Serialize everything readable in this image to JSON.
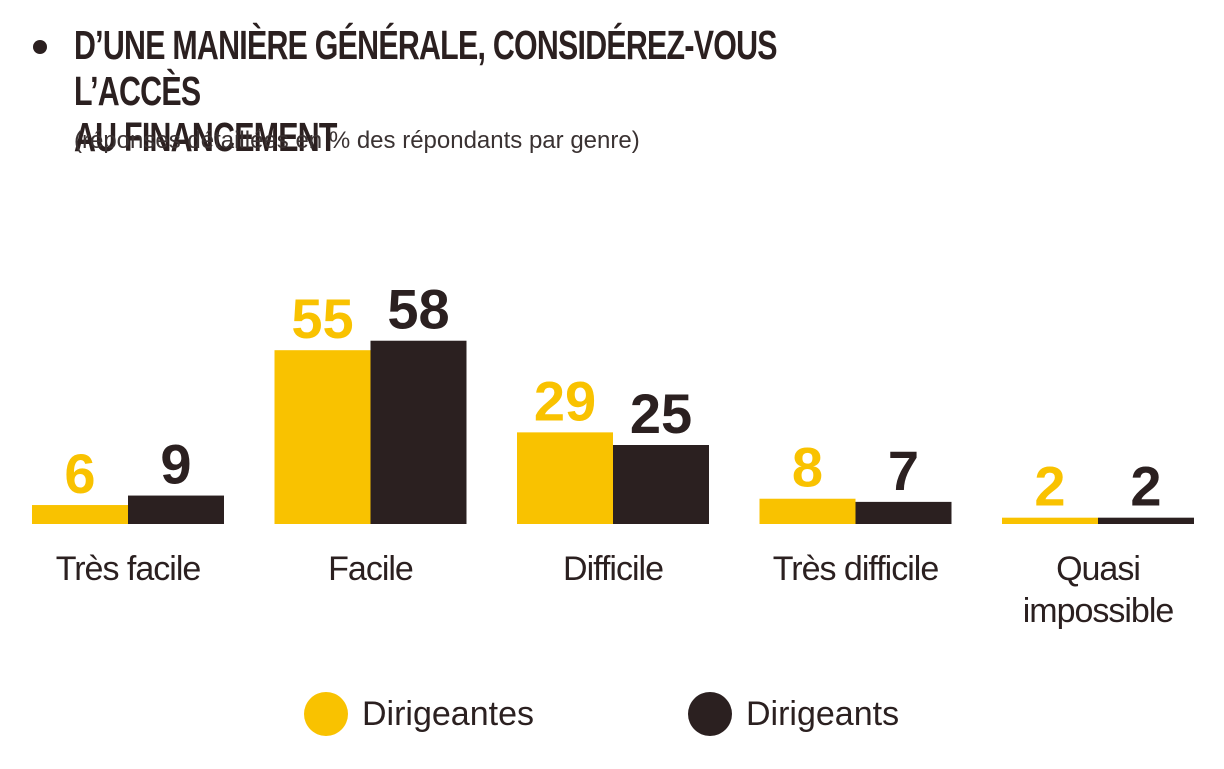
{
  "header": {
    "title_line1": "D’UNE MANIÈRE GÉNÉRALE, CONSIDÉREZ-VOUS L’ACCÈS",
    "title_line2": "AU FINANCEMENT",
    "subtitle": "(réponses détaillées en % des répondants par genre)"
  },
  "colors": {
    "dirigeantes": "#F9C200",
    "dirigeants": "#2B2020"
  },
  "chart_data": {
    "type": "bar",
    "title": "D’UNE MANIÈRE GÉNÉRALE, CONSIDÉREZ-VOUS L’ACCÈS AU FINANCEMENT",
    "subtitle": "(réponses détaillées en % des répondants par genre)",
    "categories": [
      [
        "Très facile"
      ],
      [
        "Facile"
      ],
      [
        "Difficile"
      ],
      [
        "Très difficile"
      ],
      [
        "Quasi",
        "impossible"
      ]
    ],
    "series": [
      {
        "name": "Dirigeantes",
        "values": [
          6,
          55,
          29,
          8,
          2
        ]
      },
      {
        "name": "Dirigeants",
        "values": [
          9,
          58,
          25,
          7,
          2
        ]
      }
    ],
    "ylim": [
      0,
      58
    ],
    "grid": false,
    "legend": "bottom"
  },
  "legend": {
    "dirigeantes_label": "Dirigeantes",
    "dirigeants_label": "Dirigeants"
  }
}
